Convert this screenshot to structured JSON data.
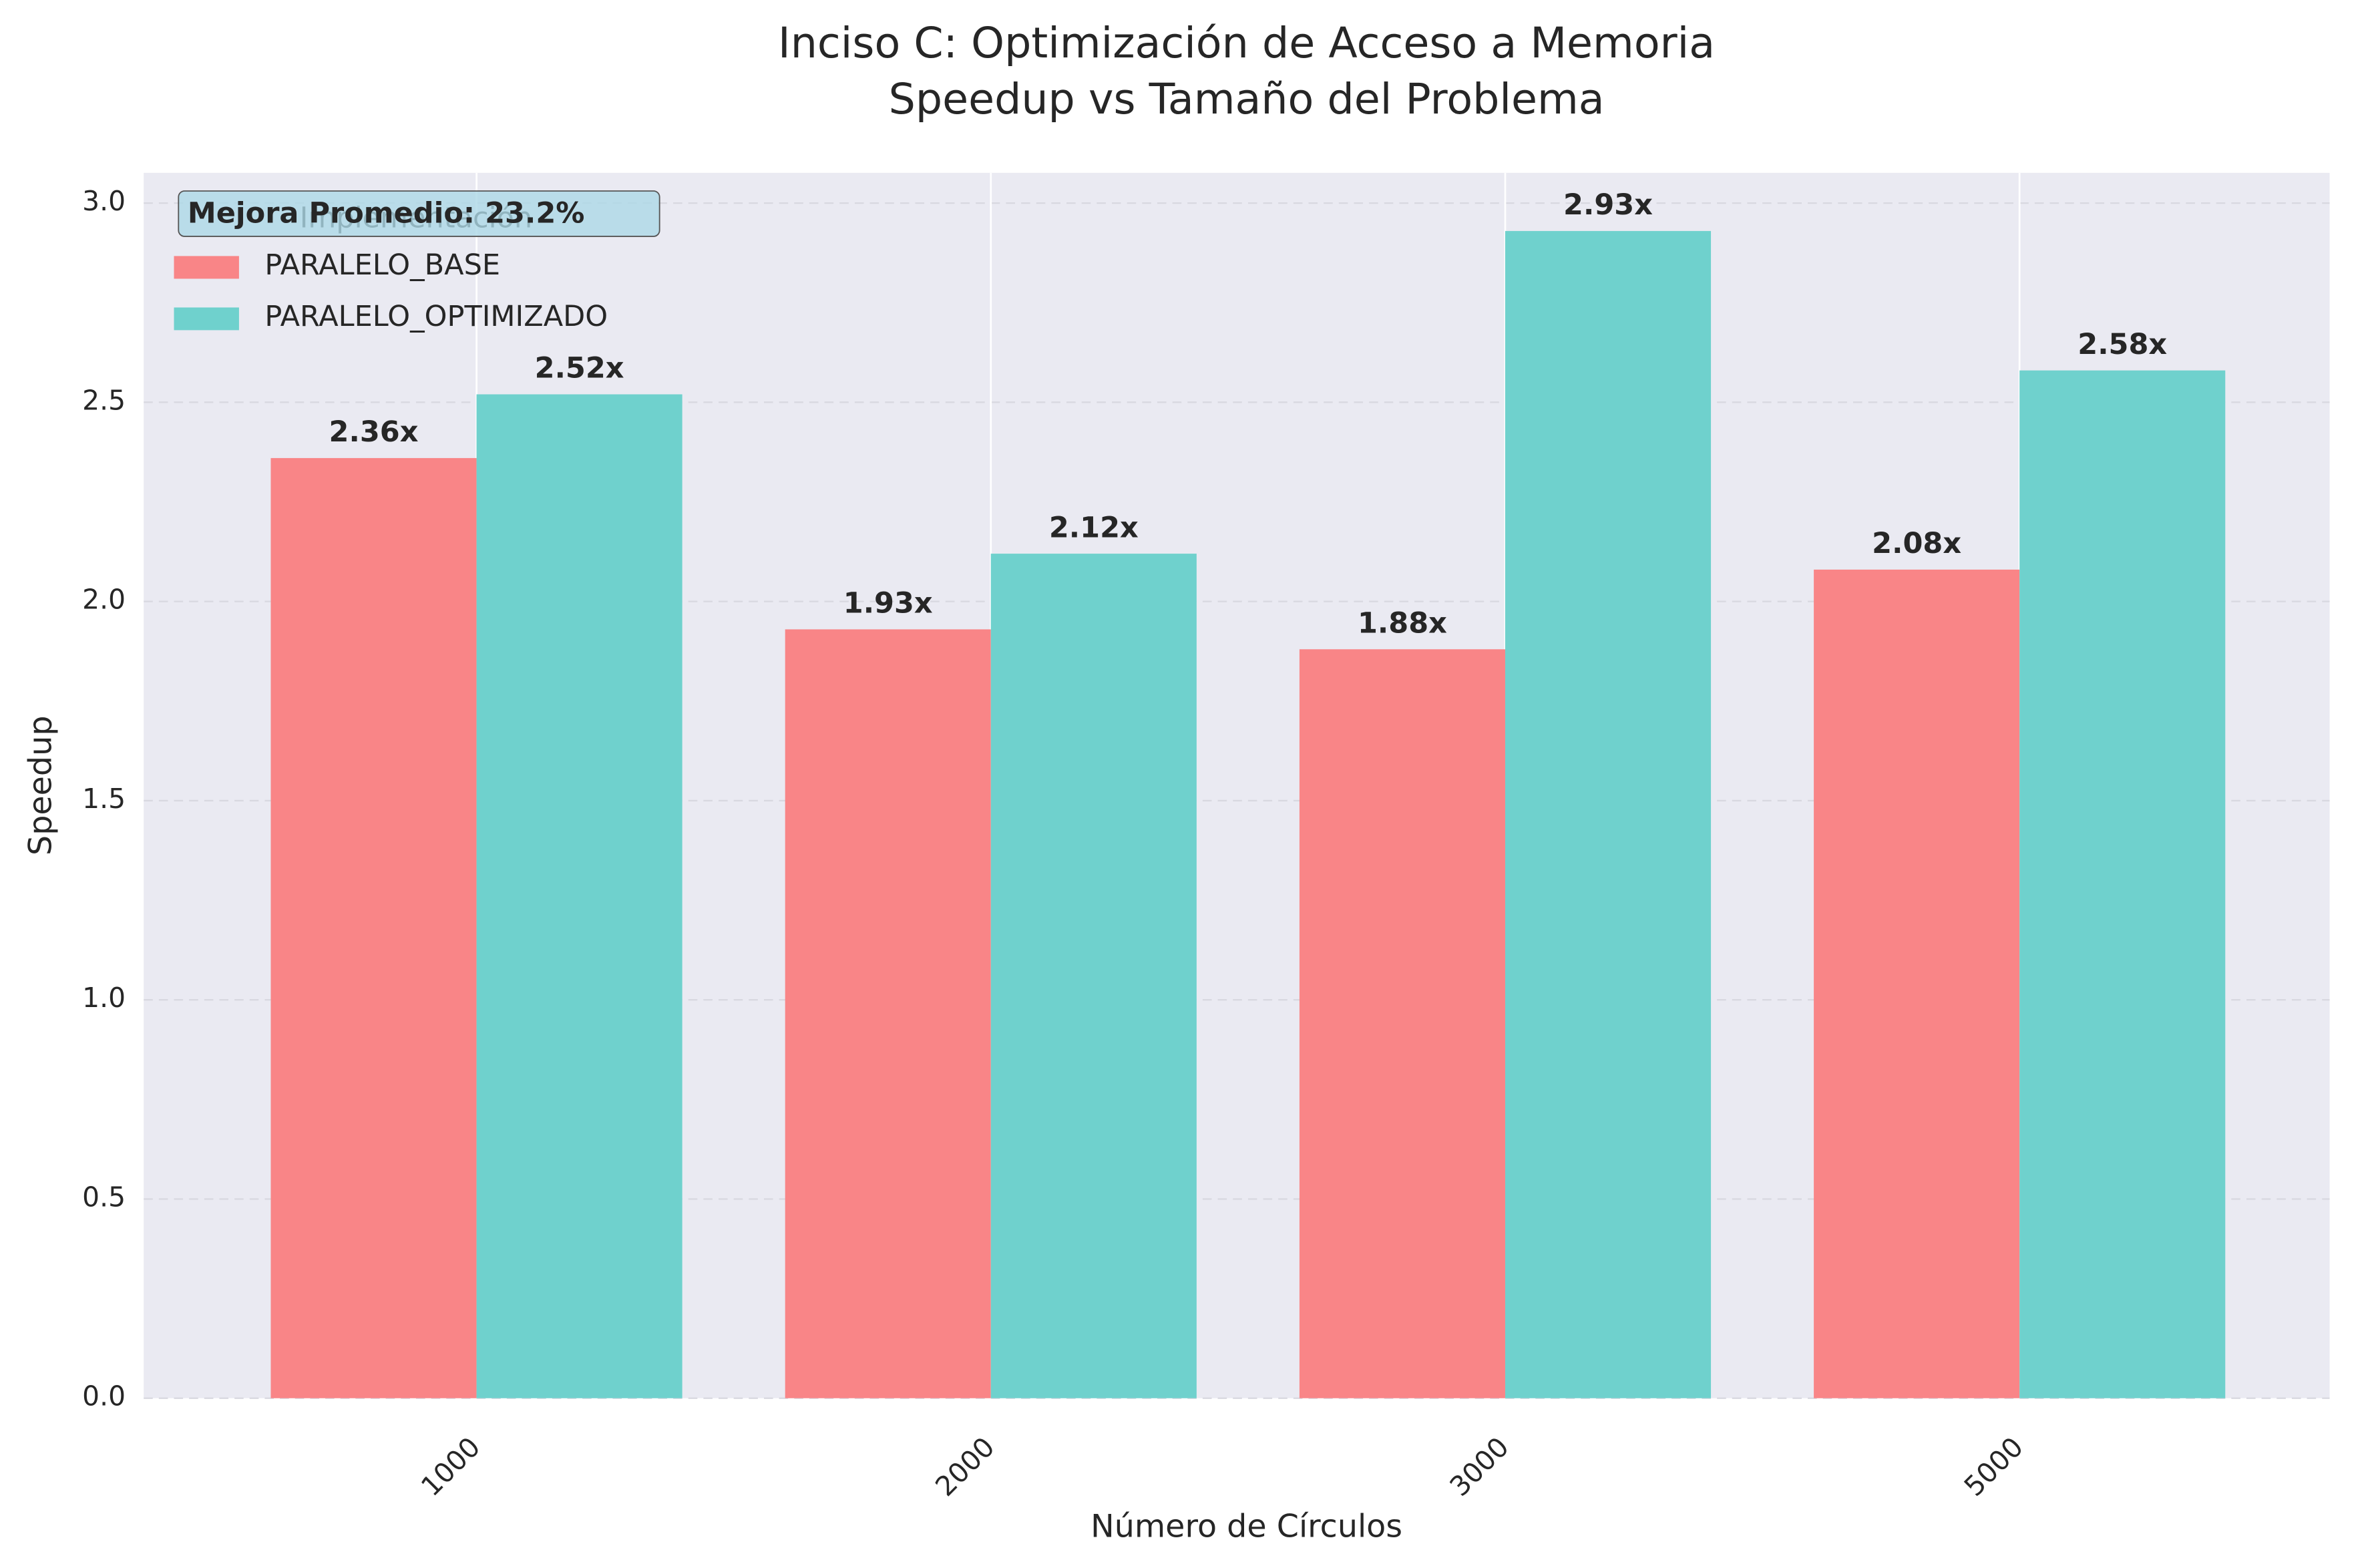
{
  "chart_data": {
    "type": "bar",
    "title": "Inciso C: Optimización de Acceso a Memoria",
    "subtitle": "Speedup vs Tamaño del Problema",
    "x_label": "Número de Círculos",
    "y_label": "Speedup",
    "categories": [
      "1000",
      "2000",
      "3000",
      "5000"
    ],
    "series": [
      {
        "name": "PARALELO_BASE",
        "color": "#f98587",
        "values": [
          2.36,
          1.93,
          1.88,
          2.08
        ],
        "value_labels": [
          "2.36x",
          "1.93x",
          "1.88x",
          "2.08x"
        ]
      },
      {
        "name": "PARALELO_OPTIMIZADO",
        "color": "#6fd1cd",
        "values": [
          2.52,
          2.12,
          2.93,
          2.58
        ],
        "value_labels": [
          "2.52x",
          "2.12x",
          "2.93x",
          "2.58x"
        ]
      }
    ],
    "legend_title": "Implementación",
    "legend_position": "upper left",
    "annotation": "Mejora Promedio: 23.2%",
    "ylim": [
      0,
      3.076
    ],
    "yticks": [
      {
        "value": 0,
        "label": "0.0"
      },
      0.5,
      {
        "value": 1,
        "label": "1.0"
      },
      1.5,
      {
        "value": 2,
        "label": "2.0"
      },
      2.5,
      {
        "value": 3,
        "label": "3.0"
      }
    ],
    "grid": true
  }
}
